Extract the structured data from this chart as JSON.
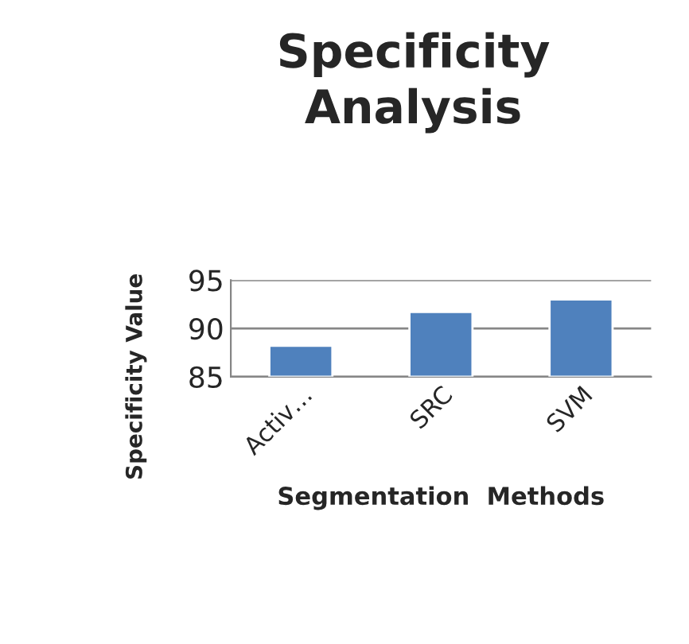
{
  "chart_data": {
    "type": "bar",
    "title": "Specificity Analysis",
    "xlabel": "Segmentation  Methods",
    "ylabel": "Specificity Value",
    "categories": [
      "Activ…",
      "SRC",
      "SVM"
    ],
    "values": [
      88.2,
      91.7,
      93.0
    ],
    "color": "#4f81bd",
    "ylim": [
      85,
      95
    ],
    "yticks": [
      85,
      90,
      95
    ],
    "grid": "y"
  }
}
